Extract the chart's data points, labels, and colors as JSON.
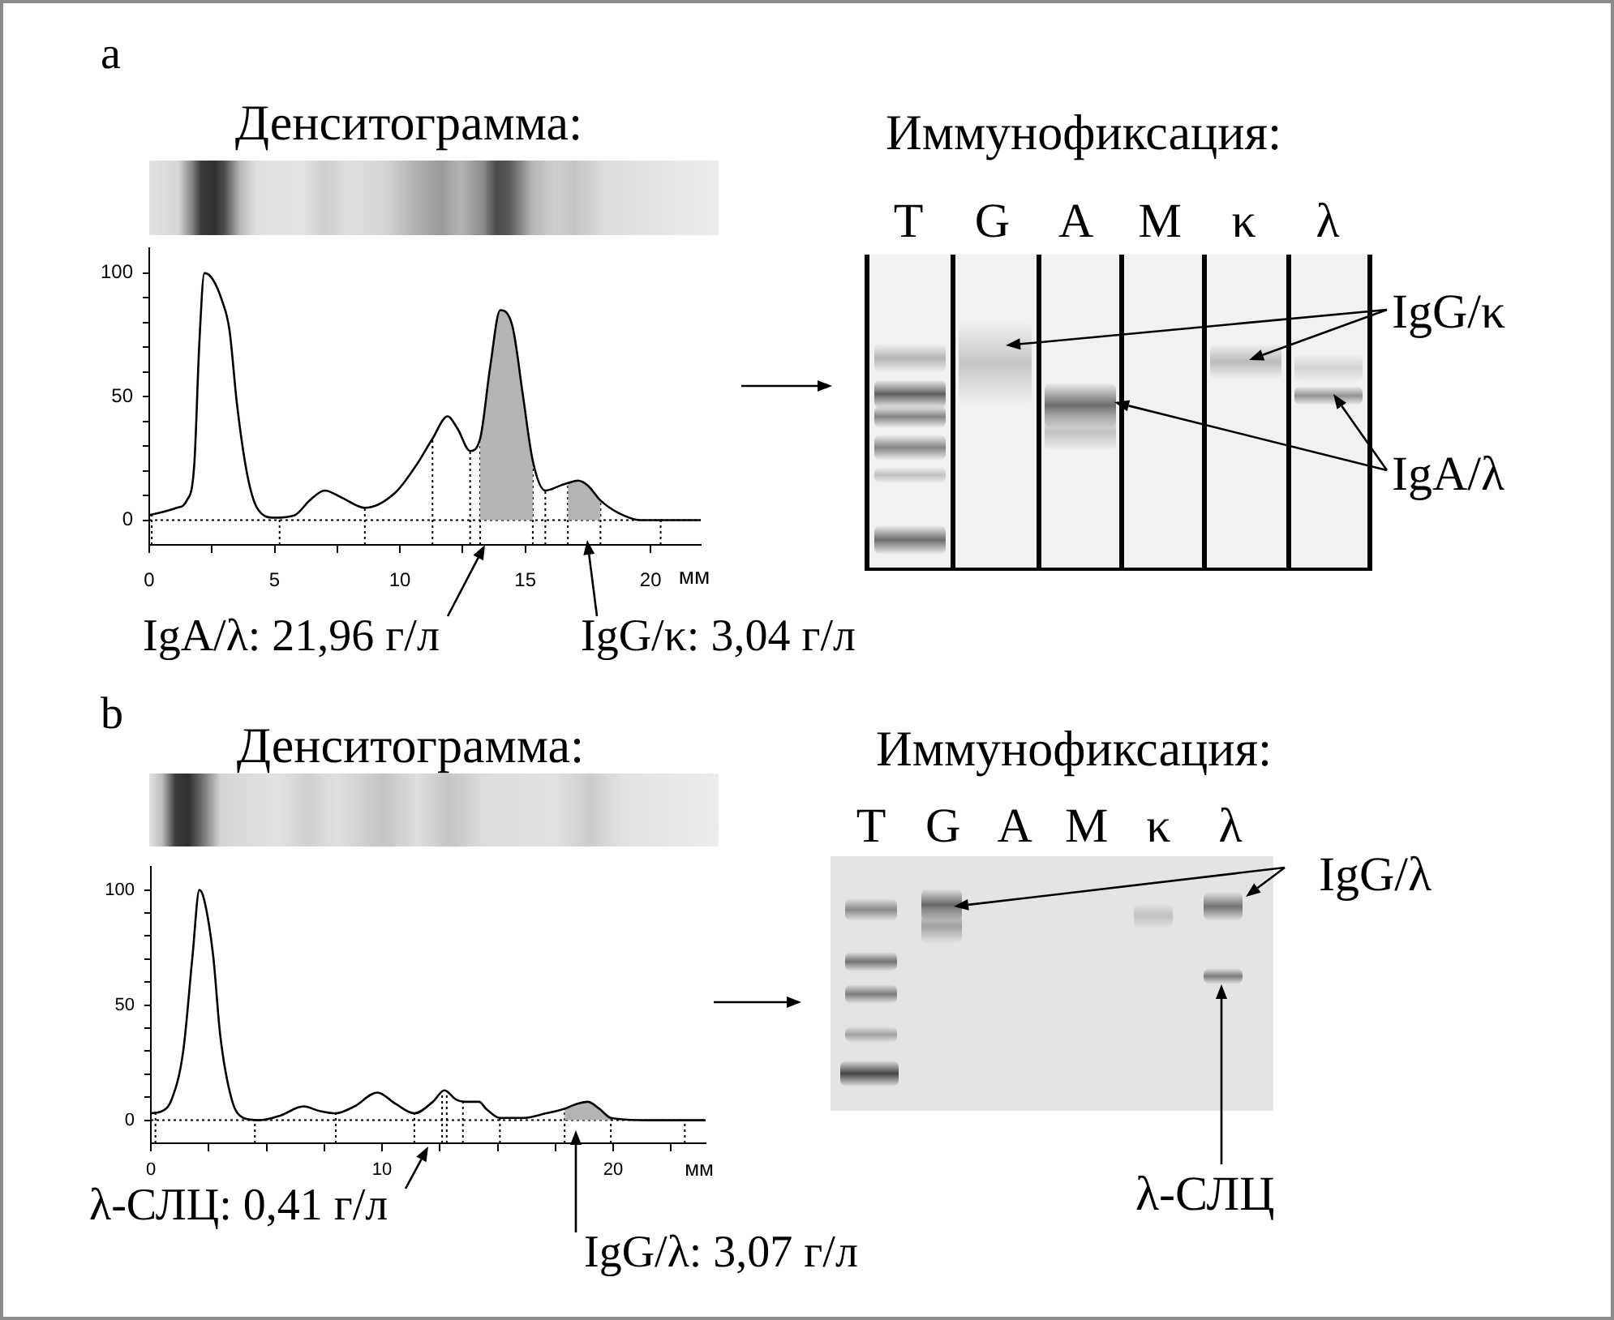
{
  "chart_data": [
    {
      "type": "line",
      "title": "Денситограмма:",
      "xlabel": "мм",
      "xlim": [
        0,
        22
      ],
      "xticks": [
        0,
        {
          "value": 2.5,
          "label": null
        },
        5,
        {
          "value": 7.5,
          "label": null
        },
        10,
        {
          "value": 12.5,
          "label": null
        },
        15,
        {
          "value": 17.5,
          "label": null
        },
        20
      ],
      "ylim": [
        -10,
        110
      ],
      "yticks": [
        0,
        {
          "value": 10,
          "label": null
        },
        {
          "value": 20,
          "label": null
        },
        {
          "value": 30,
          "label": null
        },
        {
          "value": 40,
          "label": null
        },
        50,
        {
          "value": 60,
          "label": null
        },
        {
          "value": 70,
          "label": null
        },
        {
          "value": 80,
          "label": null
        },
        {
          "value": 90,
          "label": null
        },
        100
      ],
      "series": [
        {
          "color": "#000000",
          "x": [
            0,
            1.1,
            1.5,
            1.8,
            2.0,
            2.2,
            2.5,
            2.9,
            3.2,
            3.5,
            3.9,
            4.3,
            5.0,
            5.8,
            6.4,
            7.0,
            7.7,
            8.6,
            9.8,
            10.7,
            11.3,
            11.9,
            12.3,
            12.8,
            13.2,
            13.6,
            14.0,
            14.5,
            14.9,
            15.3,
            15.8,
            16.4,
            16.7,
            17.1,
            17.5,
            18.0,
            18.7,
            19.6,
            22.0
          ],
          "values": [
            2,
            5,
            8,
            23,
            72,
            100,
            98,
            89,
            77,
            47,
            19,
            5,
            1,
            2,
            8,
            12,
            9,
            5,
            11,
            23,
            33,
            42,
            37,
            28,
            33,
            62,
            85,
            78,
            51,
            24,
            12,
            14,
            15,
            16,
            14,
            8,
            3,
            0,
            0
          ]
        },
        {
          "type": "area",
          "color": "#b4b4b4",
          "x": [
            13.2,
            13.6,
            14.0,
            14.5,
            14.9,
            15.3
          ],
          "values": [
            33,
            62,
            85,
            78,
            51,
            24
          ]
        },
        {
          "type": "area",
          "color": "#b4b4b4",
          "x": [
            16.7,
            17.1,
            17.5,
            18.0
          ],
          "values": [
            15,
            16,
            14,
            8
          ]
        }
      ],
      "ref_lines": [
        {
          "axis": "y",
          "value": 0,
          "line_style": "dotted"
        },
        {
          "axis": "x",
          "value": 0.1,
          "line_style": "dotted"
        },
        {
          "axis": "x",
          "value": 5.2,
          "line_style": "dotted"
        },
        {
          "axis": "x",
          "value": 8.6,
          "line_style": "dotted"
        },
        {
          "axis": "x",
          "value": 11.3,
          "line_style": "dotted"
        },
        {
          "axis": "x",
          "value": 12.8,
          "line_style": "dotted"
        },
        {
          "axis": "x",
          "value": 13.2,
          "line_style": "dotted"
        },
        {
          "axis": "x",
          "value": 15.3,
          "line_style": "dotted"
        },
        {
          "axis": "x",
          "value": 15.8,
          "line_style": "dotted"
        },
        {
          "axis": "x",
          "value": 16.7,
          "line_style": "dotted"
        },
        {
          "axis": "x",
          "value": 18.0,
          "line_style": "dotted"
        },
        {
          "axis": "x",
          "value": 20.4,
          "line_style": "dotted"
        }
      ],
      "annotations": [
        "a",
        "IgA/λ: 21,96 г/л",
        "IgG/κ: 3,04 г/л"
      ]
    },
    {
      "type": "other",
      "title": "Иммунофиксация:",
      "categories": [
        "T",
        "G",
        "A",
        "M",
        "κ",
        "λ"
      ],
      "annotations": [
        "IgG/κ",
        "IgA/λ"
      ]
    },
    {
      "type": "line",
      "title": "Денситограмма:",
      "xlabel": "мм",
      "xlim": [
        0,
        24
      ],
      "xticks": [
        0,
        {
          "value": 2.5,
          "label": null
        },
        {
          "value": 5,
          "label": null
        },
        {
          "value": 7.5,
          "label": null
        },
        10,
        {
          "value": 12.5,
          "label": null
        },
        {
          "value": 15,
          "label": null
        },
        {
          "value": 17.5,
          "label": null
        },
        20,
        {
          "value": 22.5,
          "label": null
        }
      ],
      "ylim": [
        -10,
        110
      ],
      "yticks": [
        0,
        {
          "value": 10,
          "label": null
        },
        {
          "value": 20,
          "label": null
        },
        {
          "value": 30,
          "label": null
        },
        {
          "value": 40,
          "label": null
        },
        50,
        {
          "value": 60,
          "label": null
        },
        {
          "value": 70,
          "label": null
        },
        {
          "value": 80,
          "label": null
        },
        {
          "value": 90,
          "label": null
        },
        100
      ],
      "series": [
        {
          "color": "#000000",
          "x": [
            0,
            0.5,
            0.9,
            1.4,
            1.8,
            2.1,
            2.3,
            2.7,
            3.0,
            3.5,
            4.0,
            4.7,
            5.6,
            6.6,
            7.3,
            8.0,
            8.8,
            9.8,
            10.6,
            11.4,
            12.2,
            12.7,
            13.2,
            13.6,
            14.2,
            14.5,
            15.1,
            16.1,
            17.1,
            17.9,
            18.4,
            18.9,
            19.4,
            19.9,
            21.5,
            24.0
          ],
          "values": [
            3,
            4,
            9,
            30,
            71,
            100,
            96,
            71,
            37,
            9,
            1,
            0,
            2,
            6,
            4,
            3,
            6,
            12,
            7,
            3,
            8,
            13,
            9,
            8,
            8,
            5,
            1,
            1,
            3,
            5,
            7,
            8,
            5,
            1,
            0,
            0
          ]
        },
        {
          "type": "area",
          "color": "#b4b4b4",
          "x": [
            17.9,
            18.4,
            18.9,
            19.4,
            19.9
          ],
          "values": [
            5,
            7,
            8,
            5,
            1
          ]
        }
      ],
      "ref_lines": [
        {
          "axis": "y",
          "value": 0,
          "line_style": "dotted"
        },
        {
          "axis": "x",
          "value": 0.2,
          "line_style": "dotted"
        },
        {
          "axis": "x",
          "value": 4.5,
          "line_style": "dotted"
        },
        {
          "axis": "x",
          "value": 8.0,
          "line_style": "dotted"
        },
        {
          "axis": "x",
          "value": 11.4,
          "line_style": "dotted"
        },
        {
          "axis": "x",
          "value": 12.6,
          "line_style": "dotted"
        },
        {
          "axis": "x",
          "value": 12.8,
          "line_style": "dotted"
        },
        {
          "axis": "x",
          "value": 13.5,
          "line_style": "dotted"
        },
        {
          "axis": "x",
          "value": 15.1,
          "line_style": "dotted"
        },
        {
          "axis": "x",
          "value": 17.9,
          "line_style": "dotted"
        },
        {
          "axis": "x",
          "value": 19.9,
          "line_style": "dotted"
        },
        {
          "axis": "x",
          "value": 23.1,
          "line_style": "dotted"
        }
      ],
      "annotations": [
        "b",
        "λ-СЛЦ: 0,41 г/л",
        "IgG/λ: 3,07 г/л"
      ]
    },
    {
      "type": "other",
      "title": "Иммунофиксация:",
      "categories": [
        "T",
        "G",
        "A",
        "M",
        "κ",
        "λ"
      ],
      "annotations": [
        "IgG/λ",
        "λ-СЛЦ"
      ]
    }
  ]
}
